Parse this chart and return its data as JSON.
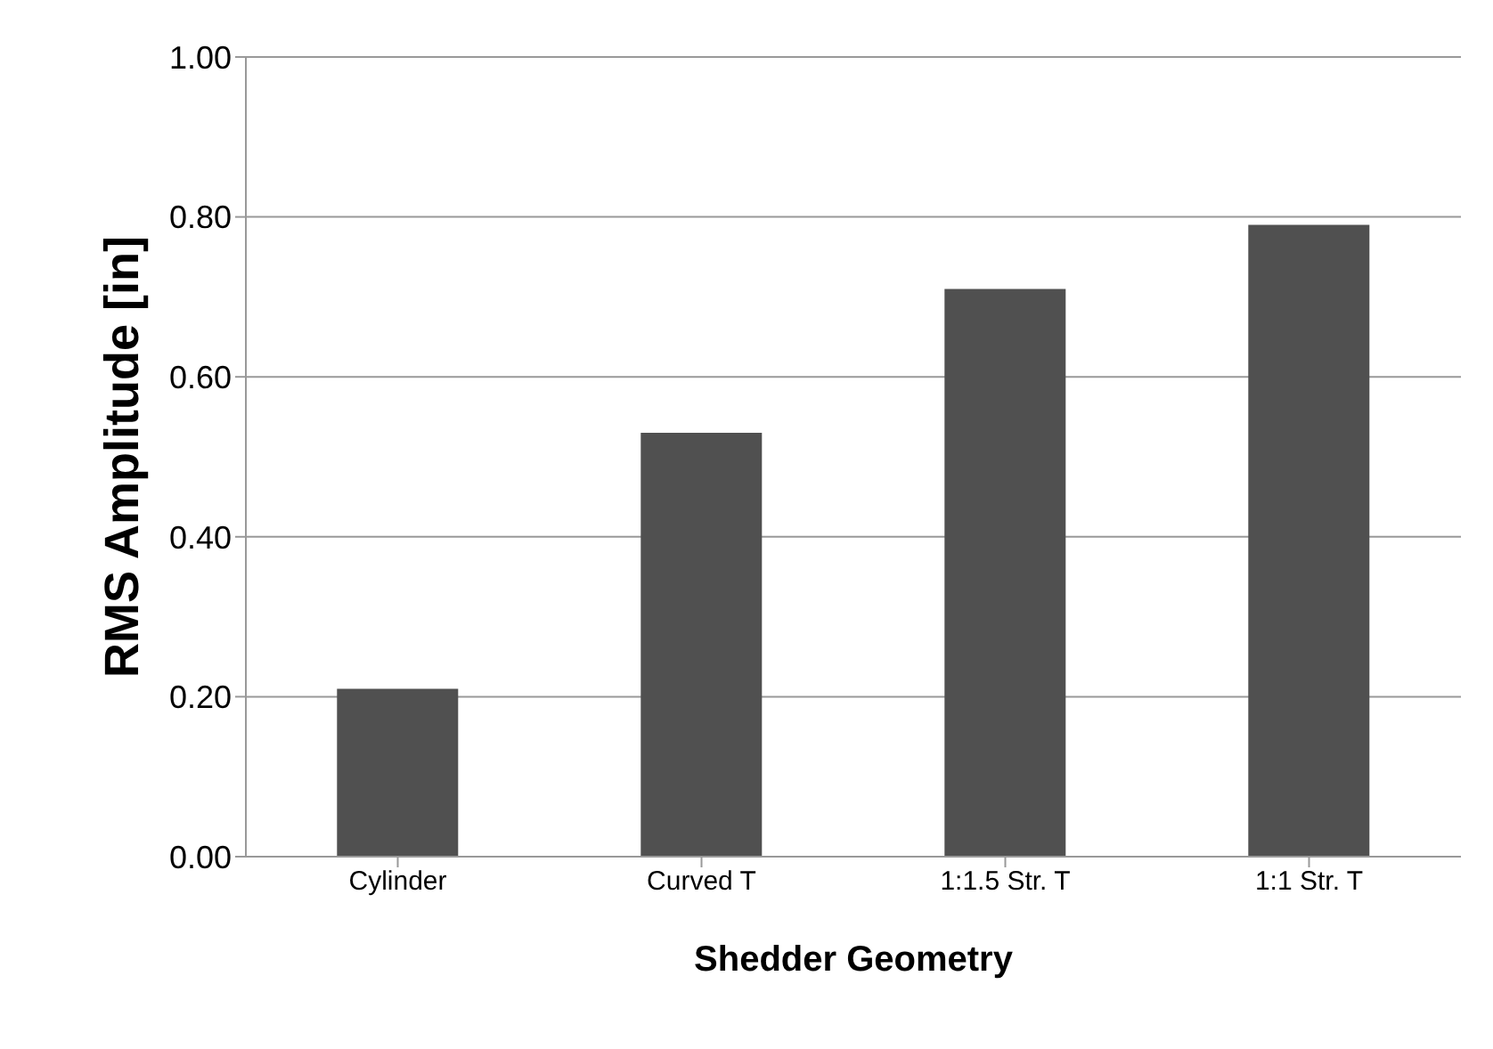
{
  "chart_data": {
    "type": "bar",
    "xlabel": "Shedder Geometry",
    "ylabel": "RMS Amplitude [in]",
    "categories": [
      "Cylinder",
      "Curved T",
      "1:1.5 Str. T",
      "1:1 Str. T"
    ],
    "values": [
      0.21,
      0.53,
      0.71,
      0.79
    ],
    "color": "#505050",
    "ylim": [
      0,
      1
    ],
    "yticks": [
      {
        "value": 0,
        "label": "0.00"
      },
      {
        "value": 0.2,
        "label": "0.20"
      },
      {
        "value": 0.4,
        "label": "0.40"
      },
      {
        "value": 0.6,
        "label": "0.60"
      },
      {
        "value": 0.8,
        "label": "0.80"
      },
      {
        "value": 1,
        "label": "1.00"
      }
    ],
    "grid": "y"
  }
}
